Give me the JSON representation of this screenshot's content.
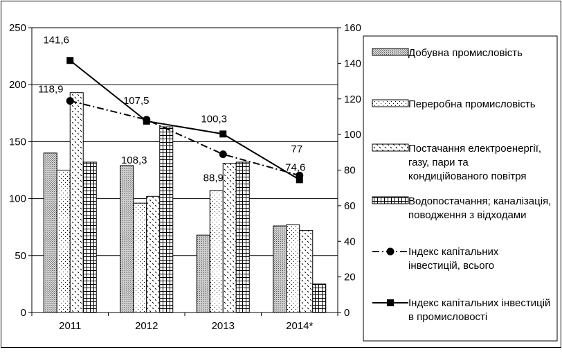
{
  "chart_data": {
    "type": "bar",
    "categories": [
      "2011",
      "2012",
      "2013",
      "2014*"
    ],
    "left_axis": {
      "min": 0,
      "max": 250,
      "step": 50,
      "ticks": [
        "0",
        "50",
        "100",
        "150",
        "200",
        "250"
      ]
    },
    "right_axis": {
      "min": 0,
      "max": 160,
      "step": 20,
      "ticks": [
        "0",
        "20",
        "40",
        "60",
        "80",
        "100",
        "120",
        "140",
        "160"
      ]
    },
    "grid": true,
    "bar_series": [
      {
        "name": "Добувна промисловість",
        "pattern": "pat-fine",
        "values": [
          140,
          129,
          68,
          76
        ]
      },
      {
        "name": "Переробна промисловість",
        "pattern": "pat-dots",
        "values": [
          125,
          96,
          107,
          77
        ]
      },
      {
        "name": "Постачання електроенергії, газу, пари та кондиційованого повітря",
        "pattern": "pat-dash",
        "values": [
          193,
          102,
          131,
          72
        ]
      },
      {
        "name": "Водопостачання; каналізація, поводження з відходами",
        "pattern": "pat-grid",
        "values": [
          132,
          163,
          132,
          25
        ]
      }
    ],
    "line_series": [
      {
        "name": "Індекс капітальних інвестицій, всього",
        "marker": "circle",
        "dash": "dashdot",
        "values": [
          118.9,
          108.3,
          88.9,
          77
        ],
        "labels": [
          "118,9",
          "108,3",
          "88,9",
          "77"
        ]
      },
      {
        "name": "Індекс капітальних інвестицій в промисловості",
        "marker": "square",
        "dash": "solid",
        "values": [
          141.6,
          107.5,
          100.3,
          74.6
        ],
        "labels": [
          "141,6",
          "107,5",
          "100,3",
          "74,6"
        ]
      }
    ],
    "legend": {
      "position": "right",
      "items": [
        {
          "lines": [
            "Добувна промисловість"
          ]
        },
        {
          "lines": [
            "Переробна промисловість"
          ]
        },
        {
          "lines": [
            "Постачання електроенергії,",
            "газу, пари та",
            "кондиційованого повітря"
          ]
        },
        {
          "lines": [
            "Водопостачання; каналізація,",
            "поводження з відходами"
          ]
        },
        {
          "lines": [
            "Індекс капітальних",
            "інвестицій, всього"
          ]
        },
        {
          "lines": [
            "Індекс капітальних інвестицій",
            "в промисловості"
          ]
        }
      ]
    }
  }
}
